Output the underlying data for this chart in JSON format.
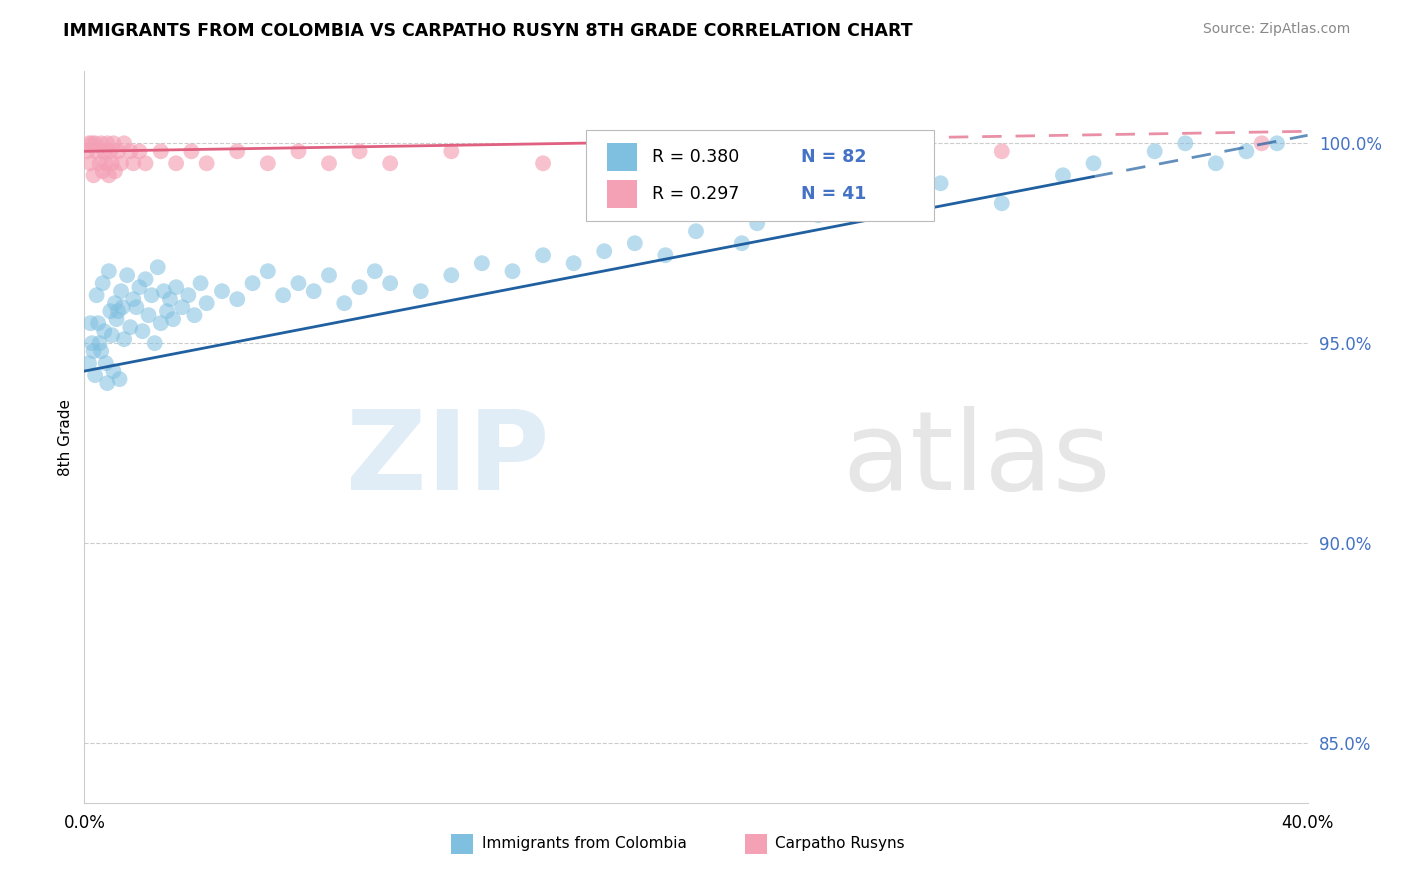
{
  "title": "IMMIGRANTS FROM COLOMBIA VS CARPATHO RUSYN 8TH GRADE CORRELATION CHART",
  "source": "Source: ZipAtlas.com",
  "ylabel": "8th Grade",
  "yticks": [
    85.0,
    90.0,
    95.0,
    100.0
  ],
  "xlim": [
    0.0,
    40.0
  ],
  "ylim": [
    83.5,
    101.8
  ],
  "legend_r1": "R = 0.380",
  "legend_n1": "N = 82",
  "legend_r2": "R = 0.297",
  "legend_n2": "N = 41",
  "color_blue": "#7fbfdf",
  "color_pink": "#f4a0b5",
  "color_blue_line": "#2060a0",
  "color_pink_line": "#e06080",
  "blue_scatter_x": [
    0.2,
    0.3,
    0.4,
    0.5,
    0.6,
    0.7,
    0.8,
    0.9,
    1.0,
    1.1,
    1.2,
    1.3,
    1.4,
    1.5,
    1.6,
    1.7,
    1.8,
    1.9,
    2.0,
    2.1,
    2.2,
    2.3,
    2.4,
    2.5,
    2.6,
    2.7,
    2.8,
    2.9,
    3.0,
    3.2,
    3.4,
    3.6,
    3.8,
    4.0,
    4.5,
    5.0,
    5.5,
    6.0,
    6.5,
    7.0,
    7.5,
    8.0,
    8.5,
    9.0,
    9.5,
    10.0,
    11.0,
    12.0,
    13.0,
    14.0,
    15.0,
    16.0,
    17.0,
    18.0,
    19.0,
    20.0,
    21.5,
    22.0,
    24.0,
    26.0,
    27.5,
    28.0,
    30.0,
    32.0,
    33.0,
    35.0,
    36.0,
    37.0,
    38.0,
    39.0,
    0.15,
    0.25,
    0.35,
    0.45,
    0.55,
    0.65,
    0.75,
    0.85,
    0.95,
    1.05,
    1.15,
    1.25
  ],
  "blue_scatter_y": [
    95.5,
    94.8,
    96.2,
    95.0,
    96.5,
    94.5,
    96.8,
    95.2,
    96.0,
    95.8,
    96.3,
    95.1,
    96.7,
    95.4,
    96.1,
    95.9,
    96.4,
    95.3,
    96.6,
    95.7,
    96.2,
    95.0,
    96.9,
    95.5,
    96.3,
    95.8,
    96.1,
    95.6,
    96.4,
    95.9,
    96.2,
    95.7,
    96.5,
    96.0,
    96.3,
    96.1,
    96.5,
    96.8,
    96.2,
    96.5,
    96.3,
    96.7,
    96.0,
    96.4,
    96.8,
    96.5,
    96.3,
    96.7,
    97.0,
    96.8,
    97.2,
    97.0,
    97.3,
    97.5,
    97.2,
    97.8,
    97.5,
    98.0,
    98.2,
    98.5,
    98.8,
    99.0,
    98.5,
    99.2,
    99.5,
    99.8,
    100.0,
    99.5,
    99.8,
    100.0,
    94.5,
    95.0,
    94.2,
    95.5,
    94.8,
    95.3,
    94.0,
    95.8,
    94.3,
    95.6,
    94.1,
    95.9
  ],
  "pink_scatter_x": [
    0.1,
    0.15,
    0.2,
    0.25,
    0.3,
    0.35,
    0.4,
    0.5,
    0.55,
    0.6,
    0.65,
    0.7,
    0.75,
    0.8,
    0.85,
    0.9,
    0.95,
    1.0,
    1.1,
    1.2,
    1.3,
    1.5,
    1.6,
    1.8,
    2.0,
    2.5,
    3.0,
    3.5,
    4.0,
    5.0,
    6.0,
    7.0,
    8.0,
    9.0,
    10.0,
    12.0,
    15.0,
    18.0,
    22.0,
    30.0,
    38.5
  ],
  "pink_scatter_y": [
    99.8,
    100.0,
    99.5,
    100.0,
    99.2,
    100.0,
    99.8,
    99.5,
    100.0,
    99.3,
    99.8,
    99.5,
    100.0,
    99.2,
    99.8,
    99.5,
    100.0,
    99.3,
    99.8,
    99.5,
    100.0,
    99.8,
    99.5,
    99.8,
    99.5,
    99.8,
    99.5,
    99.8,
    99.5,
    99.8,
    99.5,
    99.8,
    99.5,
    99.8,
    99.5,
    99.8,
    99.5,
    99.8,
    99.5,
    99.8,
    100.0
  ],
  "blue_line_x0": 0.0,
  "blue_line_x1": 40.0,
  "blue_line_y0": 94.3,
  "blue_line_y1": 100.2,
  "pink_line_x0": 0.0,
  "pink_line_x1": 40.0,
  "pink_line_y0": 99.8,
  "pink_line_y1": 100.3,
  "blue_solid_end": 33.0,
  "pink_solid_end": 25.0
}
